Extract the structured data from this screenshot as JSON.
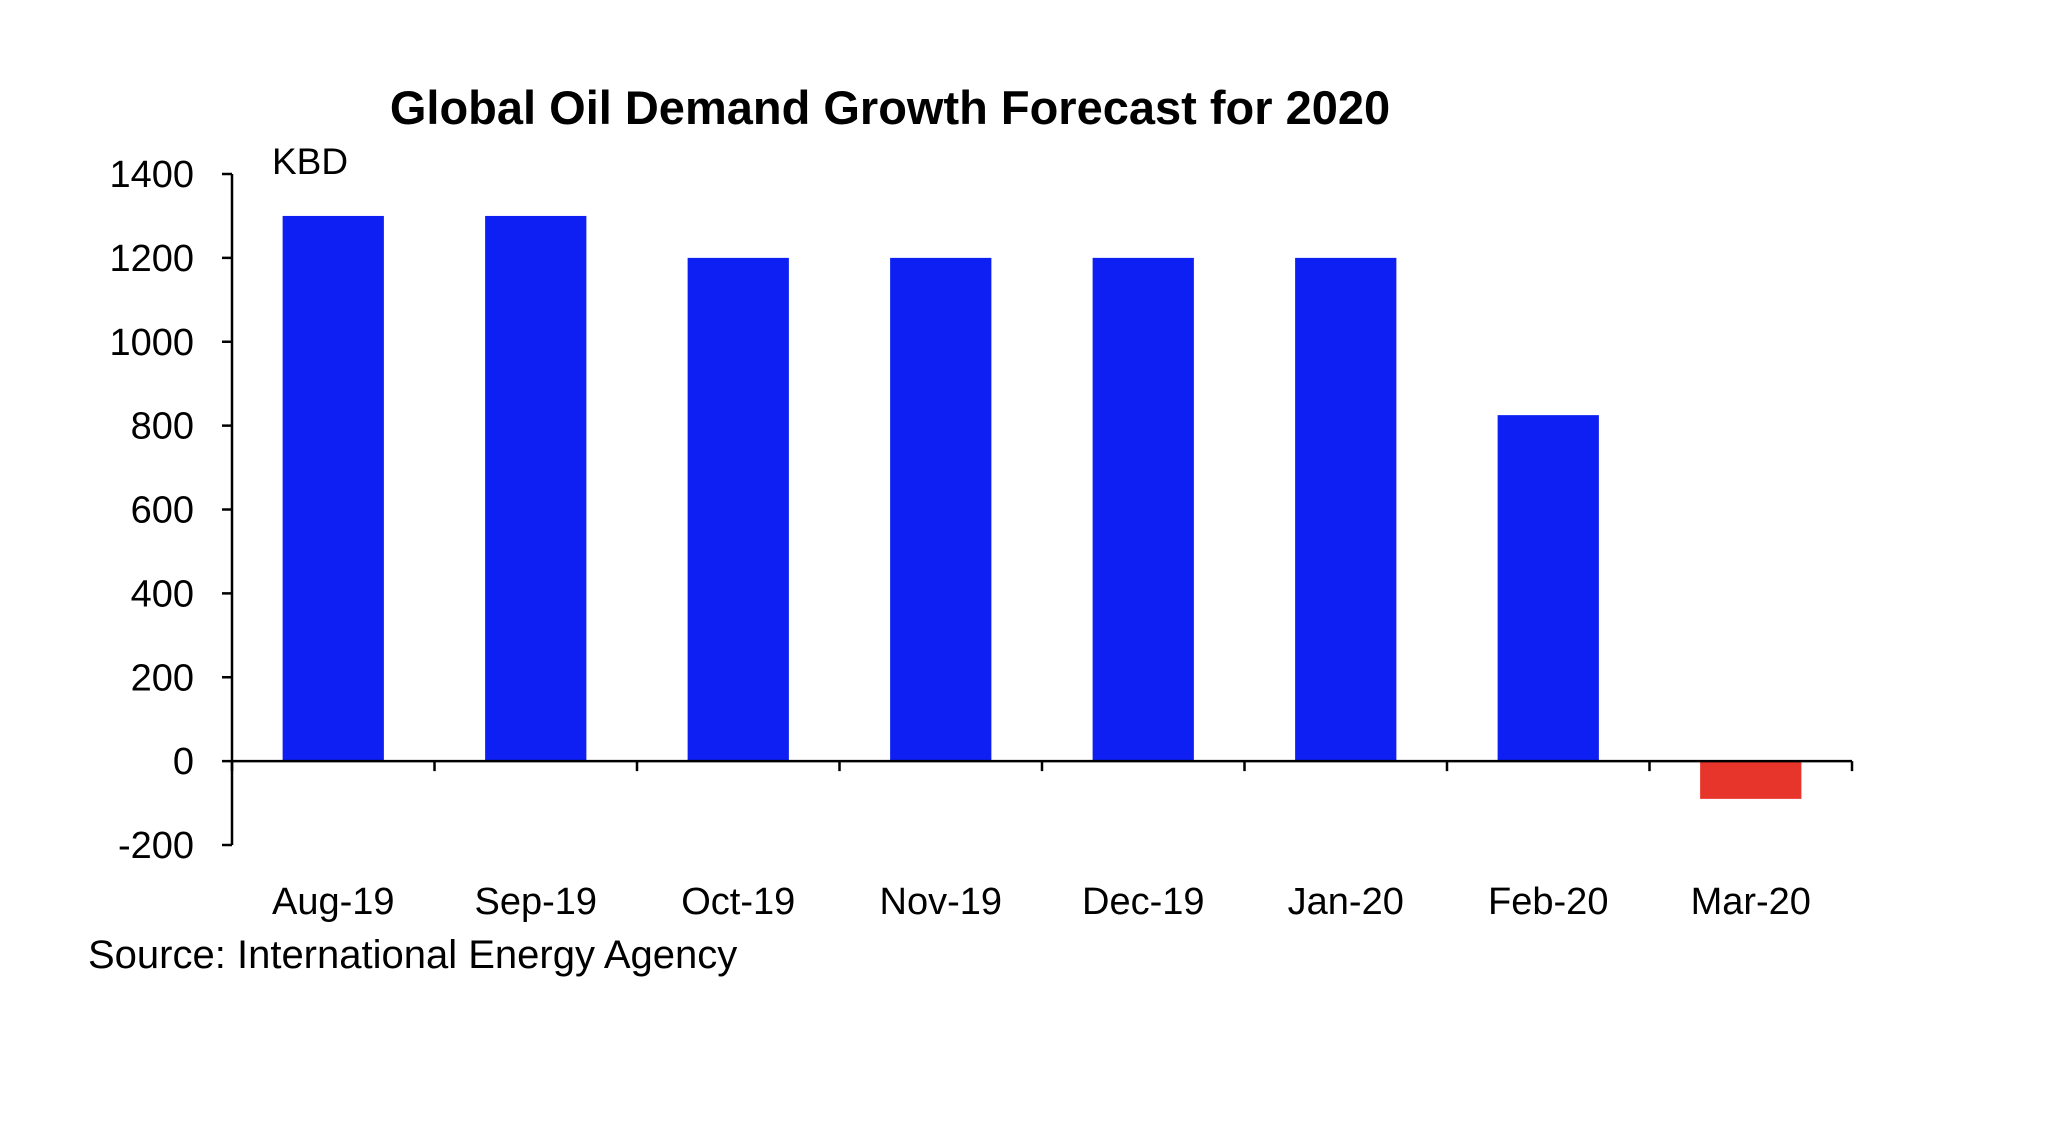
{
  "chart_data": {
    "type": "bar",
    "title": "Global Oil Demand Growth Forecast for 2020",
    "unit_label": "KBD",
    "xlabel": "",
    "ylabel": "KBD",
    "categories": [
      "Aug-19",
      "Sep-19",
      "Oct-19",
      "Nov-19",
      "Dec-19",
      "Jan-20",
      "Feb-20",
      "Mar-20"
    ],
    "values": [
      1300,
      1300,
      1200,
      1200,
      1200,
      1200,
      825,
      -90
    ],
    "ylim": [
      -200,
      1400
    ],
    "yticks": [
      "1400",
      "1200",
      "1000",
      "800",
      "600",
      "400",
      "200",
      "0",
      "-200"
    ],
    "grid": false,
    "source": "Source: International Energy Agency",
    "colors": {
      "positive": "#0d1ff2",
      "negative": "#e8352b",
      "axis": "#000000"
    }
  }
}
